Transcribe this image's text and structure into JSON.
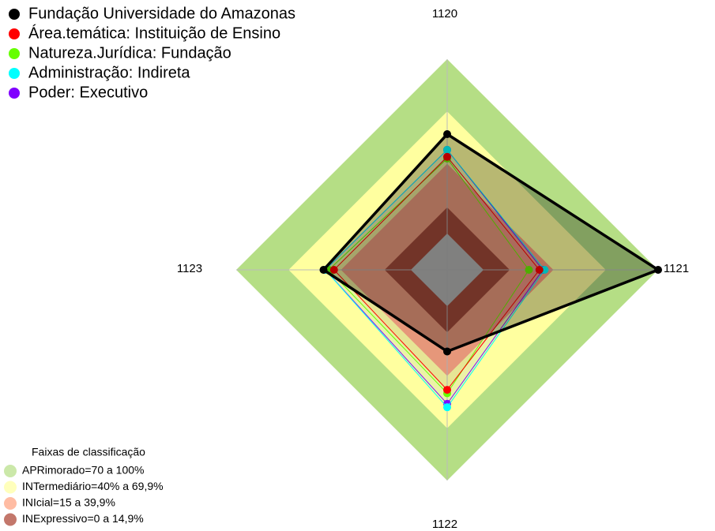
{
  "chart_data": {
    "type": "radar",
    "categories": [
      "1120",
      "1121",
      "1122",
      "1123"
    ],
    "rlim": [
      0,
      100
    ],
    "series": [
      {
        "name": "Fundação Universidade do Amazonas",
        "color": "#000000",
        "values": [
          57,
          100,
          26,
          50
        ]
      },
      {
        "name": "Área.temática: Instituição de Ensino",
        "color": "#ff0000",
        "values": [
          44,
          32,
          48,
          44
        ]
      },
      {
        "name": "Natureza.Jurídica: Fundação",
        "color": "#66ff00",
        "values": [
          43,
          26,
          50,
          47
        ]
      },
      {
        "name": "Administração: Indireta",
        "color": "#00ffff",
        "values": [
          48,
          35,
          58,
          49
        ]
      },
      {
        "name": "Poder: Executivo",
        "color": "#8000ff",
        "values": [
          48,
          34,
          56,
          49
        ]
      }
    ],
    "bands_title": "Faixas de classificação",
    "bands": [
      {
        "name": "APRimorado=70 a 100%",
        "color": "#b5de85",
        "from": 70,
        "to": 100
      },
      {
        "name": "INTermediário=40% a 69,9%",
        "color": "#ffff9f",
        "from": 40,
        "to": 70
      },
      {
        "name": "INIcial=15 a 39,9%",
        "color": "#ff9f7c",
        "from": 15,
        "to": 40
      },
      {
        "name": "INExpressivo=0 a 14,9%",
        "color": "#a93d2c",
        "from": 0,
        "to": 15
      }
    ]
  }
}
